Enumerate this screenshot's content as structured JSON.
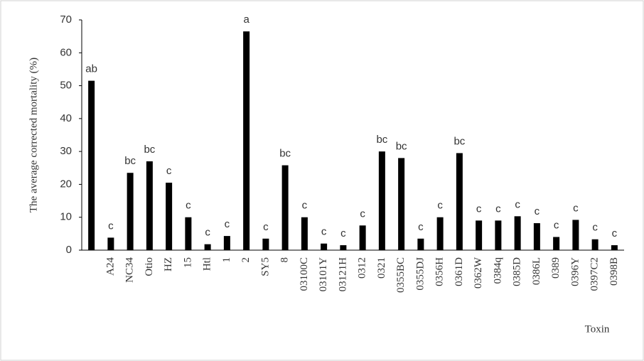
{
  "chart_data": {
    "type": "bar",
    "y_label": "The average corrected mortality (%)",
    "x_label": "Toxin",
    "categories": [
      null,
      "A24",
      "NC34",
      "Otio",
      "HZ",
      "15",
      "Htl",
      "1",
      "2",
      "SY5",
      "8",
      "03100C",
      "03101Y",
      "03121H",
      "0312",
      "0321",
      "0355BC",
      "0355DJ",
      "0356H",
      "0361D",
      "0362W",
      "0384q",
      "0385D",
      "0386L",
      "0389",
      "0396Y",
      "0397C2",
      "0398B"
    ],
    "values": [
      51.5,
      3.8,
      23.5,
      27,
      20.5,
      10,
      1.8,
      4.3,
      66.5,
      3.5,
      25.8,
      10,
      2,
      1.5,
      7.5,
      30,
      28,
      3.5,
      10,
      29.5,
      9,
      9,
      10.3,
      8.2,
      4,
      9.2,
      3.3,
      1.5
    ],
    "letters": [
      "ab",
      "c",
      "bc",
      "bc",
      "c",
      "c",
      "c",
      "c",
      "a",
      "c",
      "bc",
      "c",
      "c",
      "c",
      "c",
      "bc",
      "bc",
      "c",
      "c",
      "bc",
      "c",
      "c",
      "c",
      "c",
      "c",
      "c",
      "c",
      "c"
    ],
    "color": "#000000",
    "ylim": [
      0,
      70
    ],
    "yticks": [
      0,
      10,
      20,
      30,
      40,
      50,
      60,
      70
    ],
    "grid": false
  }
}
